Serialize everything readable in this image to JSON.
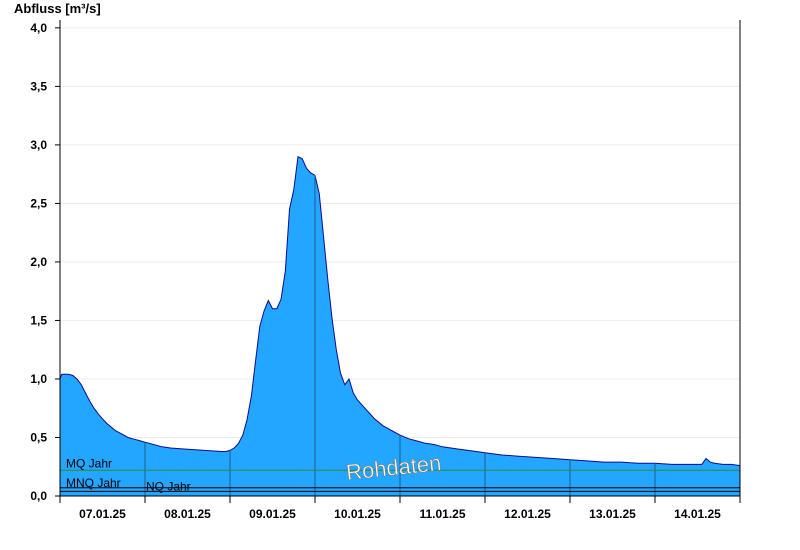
{
  "chart_data": {
    "type": "area",
    "ylabel": "Abfluss [m³/s]",
    "ylim": [
      0,
      4.05
    ],
    "yticks": [
      0.0,
      0.5,
      1.0,
      1.5,
      2.0,
      2.5,
      3.0,
      3.5,
      4.0
    ],
    "ytick_labels": [
      "0,0",
      "0,5",
      "1,0",
      "1,5",
      "2,0",
      "2,5",
      "3,0",
      "3,5",
      "4,0"
    ],
    "x_unit": "days",
    "xlim": [
      0.0,
      8.0
    ],
    "xticks": [
      0.5,
      1.5,
      2.5,
      3.5,
      4.5,
      5.5,
      6.5,
      7.5
    ],
    "xtick_labels": [
      "07.01.25",
      "08.01.25",
      "09.01.25",
      "10.01.25",
      "11.01.25",
      "12.01.25",
      "13.01.25",
      "14.01.25"
    ],
    "day_boundaries": [
      1,
      2,
      3,
      4,
      5,
      6,
      7
    ],
    "grid": "horizontal",
    "fill_color": "#22a6ff",
    "line_color": "#0b0b8f",
    "x": [
      0.0,
      0.02,
      0.1,
      0.15,
      0.2,
      0.25,
      0.3,
      0.35,
      0.4,
      0.45,
      0.5,
      0.55,
      0.6,
      0.65,
      0.7,
      0.75,
      0.8,
      0.85,
      0.9,
      0.95,
      1.0,
      1.1,
      1.2,
      1.3,
      1.5,
      1.7,
      1.9,
      1.95,
      2.0,
      2.05,
      2.1,
      2.15,
      2.2,
      2.25,
      2.3,
      2.35,
      2.4,
      2.45,
      2.5,
      2.55,
      2.6,
      2.65,
      2.7,
      2.75,
      2.8,
      2.85,
      2.9,
      2.95,
      3.0,
      3.05,
      3.1,
      3.15,
      3.2,
      3.25,
      3.3,
      3.35,
      3.4,
      3.45,
      3.5,
      3.55,
      3.6,
      3.65,
      3.7,
      3.75,
      3.8,
      3.85,
      3.9,
      3.95,
      4.0,
      4.1,
      4.2,
      4.3,
      4.4,
      4.5,
      4.6,
      4.7,
      4.8,
      5.0,
      5.2,
      5.4,
      5.6,
      5.8,
      6.0,
      6.2,
      6.4,
      6.6,
      6.8,
      7.0,
      7.2,
      7.4,
      7.55,
      7.6,
      7.65,
      7.7,
      7.8,
      7.9,
      8.0
    ],
    "y": [
      1.0,
      1.04,
      1.04,
      1.03,
      1.0,
      0.95,
      0.88,
      0.81,
      0.75,
      0.7,
      0.66,
      0.62,
      0.59,
      0.56,
      0.54,
      0.52,
      0.5,
      0.49,
      0.48,
      0.47,
      0.46,
      0.44,
      0.42,
      0.41,
      0.4,
      0.39,
      0.38,
      0.38,
      0.39,
      0.41,
      0.45,
      0.52,
      0.65,
      0.85,
      1.15,
      1.45,
      1.58,
      1.67,
      1.6,
      1.6,
      1.68,
      1.92,
      2.45,
      2.62,
      2.9,
      2.88,
      2.8,
      2.76,
      2.74,
      2.58,
      2.22,
      1.85,
      1.52,
      1.25,
      1.05,
      0.95,
      1.0,
      0.88,
      0.82,
      0.78,
      0.74,
      0.7,
      0.66,
      0.63,
      0.6,
      0.58,
      0.56,
      0.54,
      0.52,
      0.49,
      0.47,
      0.45,
      0.44,
      0.42,
      0.41,
      0.4,
      0.39,
      0.37,
      0.35,
      0.34,
      0.33,
      0.32,
      0.31,
      0.3,
      0.29,
      0.29,
      0.28,
      0.28,
      0.27,
      0.27,
      0.27,
      0.32,
      0.29,
      0.28,
      0.27,
      0.27,
      0.26
    ],
    "reference_lines": [
      {
        "label": "MQ Jahr",
        "value": 0.22,
        "color": "#2e8b2e"
      },
      {
        "label": "MNQ Jahr",
        "value": 0.07,
        "color": "#000000"
      },
      {
        "label": "NQ Jahr",
        "value": 0.04,
        "color": "#000000"
      }
    ],
    "annotation": "Rohdaten"
  }
}
